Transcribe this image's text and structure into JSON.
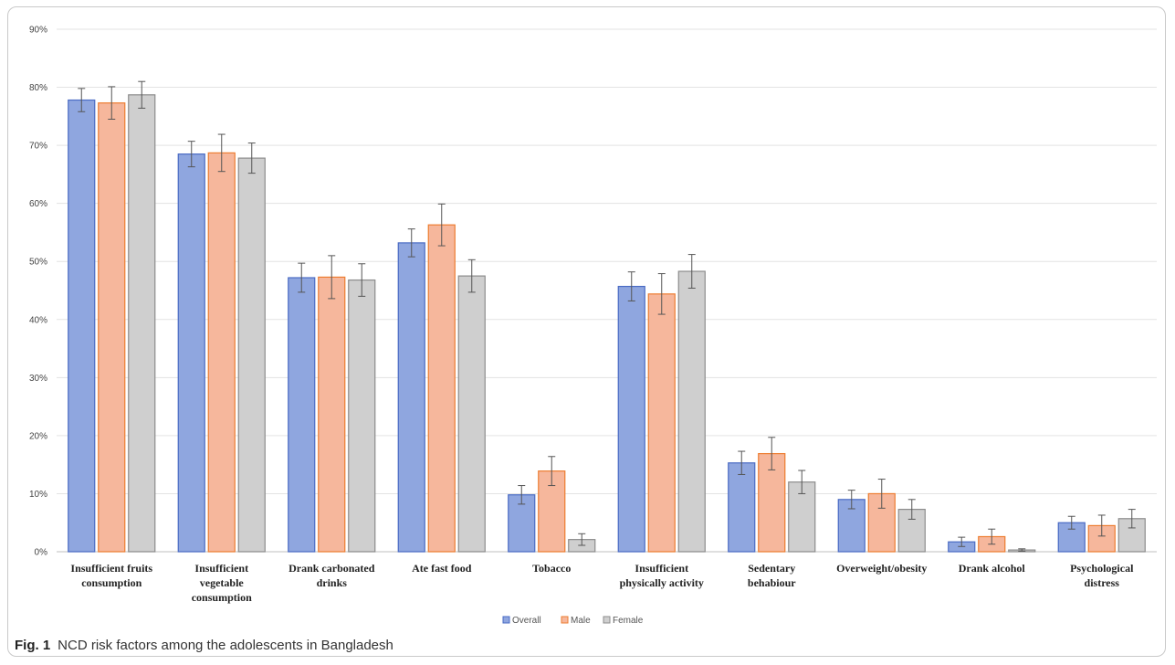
{
  "chart_data": {
    "type": "bar",
    "categories": [
      [
        "Insufficient fruits",
        "consumption"
      ],
      [
        "Insufficient",
        "vegetable",
        "consumption"
      ],
      [
        "Drank carbonated",
        "drinks"
      ],
      [
        "Ate fast food"
      ],
      [
        "Tobacco"
      ],
      [
        "Insufficient",
        "physically activity"
      ],
      [
        "Sedentary",
        "behabiour"
      ],
      [
        "Overweight/obesity"
      ],
      [
        "Drank  alcohol"
      ],
      [
        "Psychological",
        "distress"
      ]
    ],
    "series": [
      {
        "name": "Overall",
        "color": "#8fa6df",
        "border": "#4a6bc4",
        "values": [
          77.8,
          68.5,
          47.2,
          53.2,
          9.8,
          45.7,
          15.3,
          9.0,
          1.7,
          5.0
        ],
        "err": [
          2.0,
          2.2,
          2.5,
          2.4,
          1.6,
          2.5,
          2.0,
          1.6,
          0.8,
          1.1
        ]
      },
      {
        "name": "Male",
        "color": "#f6b79c",
        "border": "#ed7d31",
        "values": [
          77.3,
          68.7,
          47.3,
          56.3,
          13.9,
          44.4,
          16.9,
          10.0,
          2.6,
          4.5
        ],
        "err": [
          2.8,
          3.2,
          3.7,
          3.6,
          2.5,
          3.5,
          2.8,
          2.5,
          1.3,
          1.8
        ]
      },
      {
        "name": "Female",
        "color": "#cfcfcf",
        "border": "#8c8c8c",
        "values": [
          78.7,
          67.8,
          46.8,
          47.5,
          2.1,
          48.3,
          12.0,
          7.3,
          0.3,
          5.7
        ],
        "err": [
          2.3,
          2.6,
          2.8,
          2.8,
          1.0,
          2.9,
          2.0,
          1.7,
          0.2,
          1.6
        ]
      }
    ],
    "yticks": [
      "0%",
      "10%",
      "20%",
      "30%",
      "40%",
      "50%",
      "60%",
      "70%",
      "80%",
      "90%"
    ],
    "ylim": [
      0,
      90
    ],
    "grid": true,
    "legend_position": "bottom"
  },
  "caption": {
    "label": "Fig. 1",
    "text": "NCD risk factors among the adolescents in Bangladesh"
  }
}
